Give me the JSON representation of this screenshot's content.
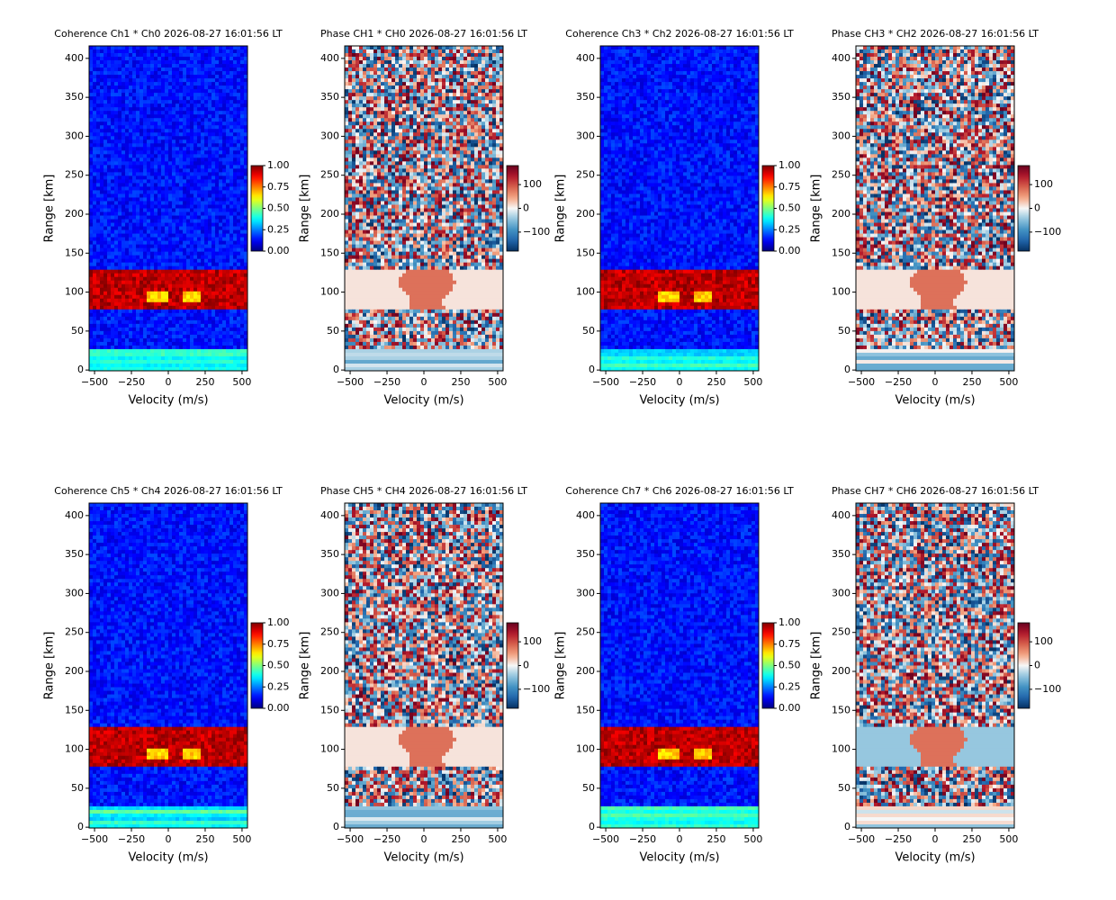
{
  "chart_data": [
    {
      "type": "heatmap",
      "title": "Coherence Ch1 * Ch0 2026-08-27 16:01:56 LT",
      "xlabel": "Velocity (m/s)",
      "ylabel": "Range [km]",
      "xlim": [
        -537,
        537
      ],
      "ylim": [
        -1,
        416
      ],
      "xticks": [
        {
          "value": -500,
          "label": "−500"
        },
        {
          "value": -250,
          "label": "−250"
        },
        0,
        250,
        500
      ],
      "yticks": [
        0,
        50,
        100,
        150,
        200,
        250,
        300,
        350,
        400
      ],
      "colormap": "jet",
      "clim": [
        0,
        1
      ],
      "cticks": [
        {
          "value": 0,
          "label": "0.00"
        },
        {
          "value": 0.25,
          "label": "0.25"
        },
        {
          "value": 0.5,
          "label": "0.50"
        },
        {
          "value": 0.75,
          "label": "0.75"
        },
        {
          "value": 1,
          "label": "1.00"
        }
      ]
    },
    {
      "type": "heatmap",
      "title": "Phase CH1 * CH0 2026-08-27 16:01:56 LT",
      "xlabel": "Velocity (m/s)",
      "ylabel": "Range [km]",
      "xlim": [
        -537,
        537
      ],
      "ylim": [
        -1,
        416
      ],
      "xticks": [
        {
          "value": -500,
          "label": "−500"
        },
        {
          "value": -250,
          "label": "−250"
        },
        0,
        250,
        500
      ],
      "yticks": [
        0,
        50,
        100,
        150,
        200,
        250,
        300,
        350,
        400
      ],
      "colormap": "RdBu_r",
      "clim": [
        -180,
        180
      ],
      "cticks": [
        {
          "value": -100,
          "label": "−100"
        },
        0,
        100
      ]
    },
    {
      "type": "heatmap",
      "title": "Coherence Ch3 * Ch2 2026-08-27 16:01:56 LT",
      "xlabel": "Velocity (m/s)",
      "ylabel": "Range [km]",
      "xlim": [
        -537,
        537
      ],
      "ylim": [
        -1,
        416
      ],
      "xticks": [
        {
          "value": -500,
          "label": "−500"
        },
        {
          "value": -250,
          "label": "−250"
        },
        0,
        250,
        500
      ],
      "yticks": [
        0,
        50,
        100,
        150,
        200,
        250,
        300,
        350,
        400
      ],
      "colormap": "jet",
      "clim": [
        0,
        1
      ],
      "cticks": [
        {
          "value": 0,
          "label": "0.00"
        },
        {
          "value": 0.25,
          "label": "0.25"
        },
        {
          "value": 0.5,
          "label": "0.50"
        },
        {
          "value": 0.75,
          "label": "0.75"
        },
        {
          "value": 1,
          "label": "1.00"
        }
      ]
    },
    {
      "type": "heatmap",
      "title": "Phase CH3 * CH2 2026-08-27 16:01:56 LT",
      "xlabel": "Velocity (m/s)",
      "ylabel": "Range [km]",
      "xlim": [
        -537,
        537
      ],
      "ylim": [
        -1,
        416
      ],
      "xticks": [
        {
          "value": -500,
          "label": "−500"
        },
        {
          "value": -250,
          "label": "−250"
        },
        0,
        250,
        500
      ],
      "yticks": [
        0,
        50,
        100,
        150,
        200,
        250,
        300,
        350,
        400
      ],
      "colormap": "RdBu_r",
      "clim": [
        -180,
        180
      ],
      "cticks": [
        {
          "value": -100,
          "label": "−100"
        },
        0,
        100
      ]
    },
    {
      "type": "heatmap",
      "title": "Coherence Ch5 * Ch4 2026-08-27 16:01:56 LT",
      "xlabel": "Velocity (m/s)",
      "ylabel": "Range [km]",
      "xlim": [
        -537,
        537
      ],
      "ylim": [
        -1,
        416
      ],
      "xticks": [
        {
          "value": -500,
          "label": "−500"
        },
        {
          "value": -250,
          "label": "−250"
        },
        0,
        250,
        500
      ],
      "yticks": [
        0,
        50,
        100,
        150,
        200,
        250,
        300,
        350,
        400
      ],
      "colormap": "jet",
      "clim": [
        0,
        1
      ],
      "cticks": [
        {
          "value": 0,
          "label": "0.00"
        },
        {
          "value": 0.25,
          "label": "0.25"
        },
        {
          "value": 0.5,
          "label": "0.50"
        },
        {
          "value": 0.75,
          "label": "0.75"
        },
        {
          "value": 1,
          "label": "1.00"
        }
      ]
    },
    {
      "type": "heatmap",
      "title": "Phase CH5 * CH4 2026-08-27 16:01:56 LT",
      "xlabel": "Velocity (m/s)",
      "ylabel": "Range [km]",
      "xlim": [
        -537,
        537
      ],
      "ylim": [
        -1,
        416
      ],
      "xticks": [
        {
          "value": -500,
          "label": "−500"
        },
        {
          "value": -250,
          "label": "−250"
        },
        0,
        250,
        500
      ],
      "yticks": [
        0,
        50,
        100,
        150,
        200,
        250,
        300,
        350,
        400
      ],
      "colormap": "RdBu_r",
      "clim": [
        -180,
        180
      ],
      "cticks": [
        {
          "value": -100,
          "label": "−100"
        },
        0,
        100
      ]
    },
    {
      "type": "heatmap",
      "title": "Coherence Ch7 * Ch6 2026-08-27 16:01:56 LT",
      "xlabel": "Velocity (m/s)",
      "ylabel": "Range [km]",
      "xlim": [
        -537,
        537
      ],
      "ylim": [
        -1,
        416
      ],
      "xticks": [
        {
          "value": -500,
          "label": "−500"
        },
        {
          "value": -250,
          "label": "−250"
        },
        0,
        250,
        500
      ],
      "yticks": [
        0,
        50,
        100,
        150,
        200,
        250,
        300,
        350,
        400
      ],
      "colormap": "jet",
      "clim": [
        0,
        1
      ],
      "cticks": [
        {
          "value": 0,
          "label": "0.00"
        },
        {
          "value": 0.25,
          "label": "0.25"
        },
        {
          "value": 0.5,
          "label": "0.50"
        },
        {
          "value": 0.75,
          "label": "0.75"
        },
        {
          "value": 1,
          "label": "1.00"
        }
      ]
    },
    {
      "type": "heatmap",
      "title": "Phase CH7 * CH6 2026-08-27 16:01:56 LT",
      "xlabel": "Velocity (m/s)",
      "ylabel": "Range [km]",
      "xlim": [
        -537,
        537
      ],
      "ylim": [
        -1,
        416
      ],
      "xticks": [
        {
          "value": -500,
          "label": "−500"
        },
        {
          "value": -250,
          "label": "−250"
        },
        0,
        250,
        500
      ],
      "yticks": [
        0,
        50,
        100,
        150,
        200,
        250,
        300,
        350,
        400
      ],
      "colormap": "RdBu_r",
      "clim": [
        -180,
        180
      ],
      "cticks": [
        {
          "value": -100,
          "label": "−100"
        },
        0,
        100
      ]
    }
  ]
}
